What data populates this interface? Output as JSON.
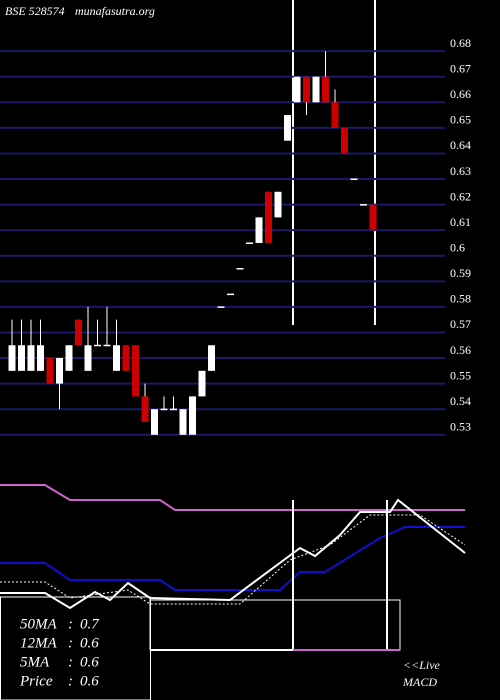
{
  "chart_data": {
    "type": "candlestick",
    "title": "BSE 528574",
    "source": "munafasutra.org",
    "open": [
      0.555,
      0.555,
      0.555,
      0.555,
      0.56,
      0.55,
      0.555,
      0.575,
      0.555,
      0.565,
      0.565,
      0.555,
      0.565,
      0.565,
      0.545,
      0.53,
      0.54,
      0.54,
      0.53,
      0.53,
      0.545,
      0.555,
      0.58,
      0.585,
      0.595,
      0.605,
      0.605,
      0.625,
      0.615,
      0.645,
      0.66,
      0.67,
      0.66,
      0.67,
      0.66,
      0.65,
      0.63,
      0.62,
      0.62
    ],
    "high": [
      0.575,
      0.575,
      0.575,
      0.575,
      0.56,
      0.56,
      0.565,
      0.575,
      0.58,
      0.575,
      0.58,
      0.575,
      0.565,
      0.565,
      0.55,
      0.54,
      0.545,
      0.545,
      0.54,
      0.545,
      0.555,
      0.565,
      0.58,
      0.585,
      0.595,
      0.605,
      0.615,
      0.625,
      0.625,
      0.655,
      0.67,
      0.67,
      0.67,
      0.68,
      0.665,
      0.65,
      0.63,
      0.62,
      0.62
    ],
    "low": [
      0.555,
      0.555,
      0.555,
      0.555,
      0.55,
      0.54,
      0.555,
      0.565,
      0.555,
      0.565,
      0.565,
      0.555,
      0.555,
      0.545,
      0.535,
      0.53,
      0.54,
      0.54,
      0.53,
      0.53,
      0.545,
      0.555,
      0.58,
      0.585,
      0.595,
      0.605,
      0.605,
      0.605,
      0.615,
      0.645,
      0.66,
      0.655,
      0.66,
      0.66,
      0.65,
      0.64,
      0.63,
      0.62,
      0.61
    ],
    "close": [
      0.565,
      0.565,
      0.565,
      0.565,
      0.55,
      0.56,
      0.565,
      0.565,
      0.565,
      0.565,
      0.565,
      0.565,
      0.555,
      0.545,
      0.535,
      0.54,
      0.54,
      0.54,
      0.54,
      0.545,
      0.555,
      0.565,
      0.58,
      0.585,
      0.595,
      0.605,
      0.615,
      0.605,
      0.625,
      0.655,
      0.67,
      0.66,
      0.67,
      0.66,
      0.65,
      0.64,
      0.63,
      0.62,
      0.61
    ],
    "up_color": "#ffffff",
    "down_color": "#cc0000",
    "grid_color": "#1a1a66",
    "ylim": [
      0.526,
      0.7
    ],
    "yticks": [
      0.53,
      0.54,
      0.55,
      0.56,
      0.57,
      0.58,
      0.59,
      0.6,
      0.61,
      0.62,
      0.63,
      0.64,
      0.65,
      0.66,
      0.67,
      0.68
    ],
    "grid": true,
    "stats": [
      {
        "label": "50MA",
        "value": 0.7
      },
      {
        "label": "12MA",
        "value": 0.6
      },
      {
        "label": "5MA",
        "value": 0.6
      },
      {
        "label": "Price",
        "value": 0.6
      }
    ],
    "live_label": "<<Live",
    "macd_label": "MACD"
  }
}
